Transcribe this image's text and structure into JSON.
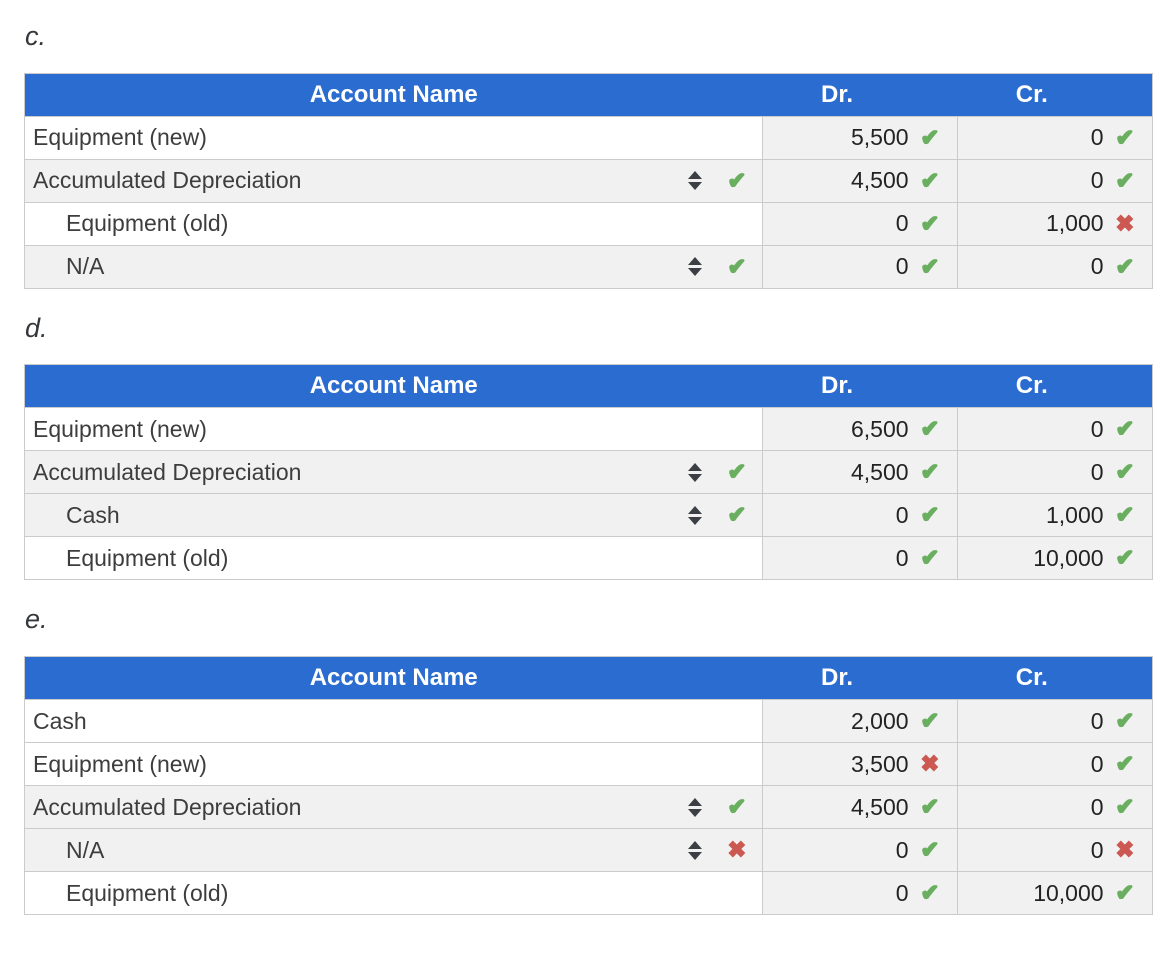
{
  "colors": {
    "header_bg": "#2b6cd1",
    "header_text": "#ffffff",
    "cell_bg": "#f1f1f1",
    "border": "#cbcbcb",
    "check": "#6aae60",
    "cross": "#cb5952",
    "arrow": "#3b3f44",
    "account_text": "#3d3d3d",
    "number_text": "#232323",
    "label_text": "#35383b"
  },
  "icons": {
    "check": "✔",
    "cross": "✖",
    "select": "up-down-select-arrows"
  },
  "tables": [
    {
      "label": "c.",
      "headers": {
        "account": "Account Name",
        "dr": "Dr.",
        "cr": "Cr."
      },
      "rows": [
        {
          "account": "Equipment (new)",
          "indent": false,
          "select": false,
          "account_mark": null,
          "dr": "5,500",
          "dr_mark": "check",
          "cr": "0",
          "cr_mark": "check"
        },
        {
          "account": "Accumulated Depreciation",
          "indent": false,
          "select": true,
          "account_mark": "check",
          "dr": "4,500",
          "dr_mark": "check",
          "cr": "0",
          "cr_mark": "check"
        },
        {
          "account": "Equipment (old)",
          "indent": true,
          "select": false,
          "account_mark": null,
          "dr": "0",
          "dr_mark": "check",
          "cr": "1,000",
          "cr_mark": "cross"
        },
        {
          "account": "N/A",
          "indent": true,
          "select": true,
          "account_mark": "check",
          "dr": "0",
          "dr_mark": "check",
          "cr": "0",
          "cr_mark": "check"
        }
      ]
    },
    {
      "label": "d.",
      "headers": {
        "account": "Account Name",
        "dr": "Dr.",
        "cr": "Cr."
      },
      "rows": [
        {
          "account": "Equipment (new)",
          "indent": false,
          "select": false,
          "account_mark": null,
          "dr": "6,500",
          "dr_mark": "check",
          "cr": "0",
          "cr_mark": "check"
        },
        {
          "account": "Accumulated Depreciation",
          "indent": false,
          "select": true,
          "account_mark": "check",
          "dr": "4,500",
          "dr_mark": "check",
          "cr": "0",
          "cr_mark": "check"
        },
        {
          "account": "Cash",
          "indent": true,
          "select": true,
          "account_mark": "check",
          "dr": "0",
          "dr_mark": "check",
          "cr": "1,000",
          "cr_mark": "check"
        },
        {
          "account": "Equipment (old)",
          "indent": true,
          "select": false,
          "account_mark": null,
          "dr": "0",
          "dr_mark": "check",
          "cr": "10,000",
          "cr_mark": "check"
        }
      ]
    },
    {
      "label": "e.",
      "headers": {
        "account": "Account Name",
        "dr": "Dr.",
        "cr": "Cr."
      },
      "rows": [
        {
          "account": "Cash",
          "indent": false,
          "select": false,
          "account_mark": null,
          "dr": "2,000",
          "dr_mark": "check",
          "cr": "0",
          "cr_mark": "check"
        },
        {
          "account": "Equipment (new)",
          "indent": false,
          "select": false,
          "account_mark": null,
          "dr": "3,500",
          "dr_mark": "cross",
          "cr": "0",
          "cr_mark": "check"
        },
        {
          "account": "Accumulated Depreciation",
          "indent": false,
          "select": true,
          "account_mark": "check",
          "dr": "4,500",
          "dr_mark": "check",
          "cr": "0",
          "cr_mark": "check"
        },
        {
          "account": "N/A",
          "indent": true,
          "select": true,
          "account_mark": "cross",
          "dr": "0",
          "dr_mark": "check",
          "cr": "0",
          "cr_mark": "cross"
        },
        {
          "account": "Equipment (old)",
          "indent": true,
          "select": false,
          "account_mark": null,
          "dr": "0",
          "dr_mark": "check",
          "cr": "10,000",
          "cr_mark": "check"
        }
      ]
    }
  ]
}
